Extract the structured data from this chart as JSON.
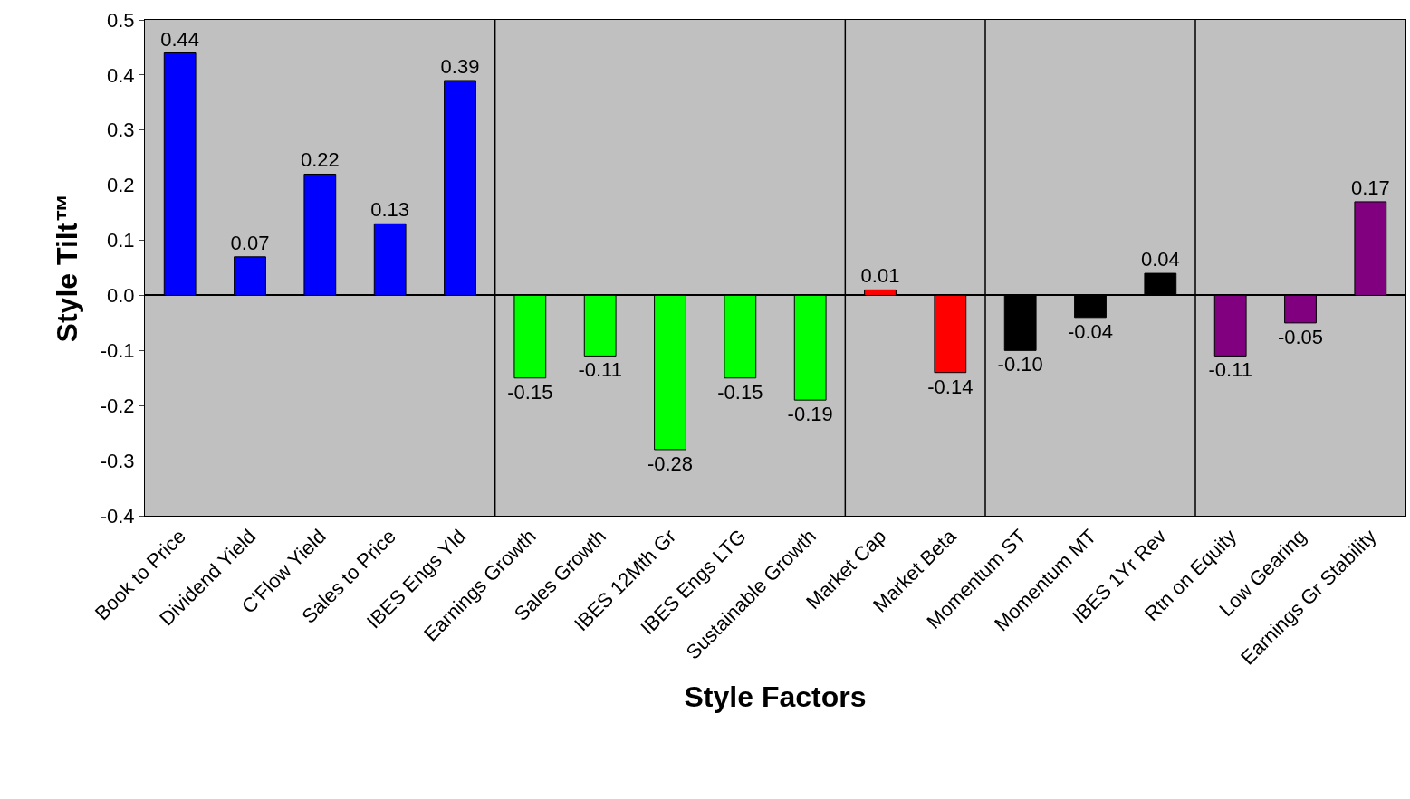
{
  "chart_data": {
    "type": "bar",
    "xlabel": "Style Factors",
    "ylabel": "Style Tilt™",
    "categories": [
      "Book to Price",
      "Dividend Yield",
      "C'Flow Yield",
      "Sales to Price",
      "IBES Engs Yld",
      "Earnings Growth",
      "Sales Growth",
      "IBES 12Mth Gr",
      "IBES Engs LTG",
      "Sustainable Growth",
      "Market Cap",
      "Market Beta",
      "Momentum ST",
      "Momentum MT",
      "IBES 1Yr Rev",
      "Rtn on Equity",
      "Low Gearing",
      "Earnings Gr Stability"
    ],
    "values": [
      0.44,
      0.07,
      0.22,
      0.13,
      0.39,
      -0.15,
      -0.11,
      -0.28,
      -0.15,
      -0.19,
      0.01,
      -0.14,
      -0.1,
      -0.04,
      0.04,
      -0.11,
      -0.05,
      0.17
    ],
    "value_labels": [
      "0.44",
      "0.07",
      "0.22",
      "0.13",
      "0.39",
      "-0.15",
      "-0.11",
      "-0.28",
      "-0.15",
      "-0.19",
      "0.01",
      "-0.14",
      "-0.10",
      "-0.04",
      "0.04",
      "-0.11",
      "-0.05",
      "0.17"
    ],
    "colors": [
      "#0000ff",
      "#0000ff",
      "#0000ff",
      "#0000ff",
      "#0000ff",
      "#00ff00",
      "#00ff00",
      "#00ff00",
      "#00ff00",
      "#00ff00",
      "#ff0000",
      "#ff0000",
      "#000000",
      "#000000",
      "#000000",
      "#800080",
      "#800080",
      "#800080"
    ],
    "ylim": [
      -0.4,
      0.5
    ],
    "yticks": [
      {
        "value": -0.4,
        "label": "-0.4"
      },
      {
        "value": -0.3,
        "label": "-0.3"
      },
      {
        "value": -0.2,
        "label": "-0.2"
      },
      {
        "value": -0.1,
        "label": "-0.1"
      },
      {
        "value": 0,
        "label": "0.0"
      },
      {
        "value": 0.1,
        "label": "0.1"
      },
      {
        "value": 0.2,
        "label": "0.2"
      },
      {
        "value": 0.3,
        "label": "0.3"
      },
      {
        "value": 0.4,
        "label": "0.4"
      },
      {
        "value": 0.5,
        "label": "0.5"
      }
    ],
    "grid": false
  }
}
